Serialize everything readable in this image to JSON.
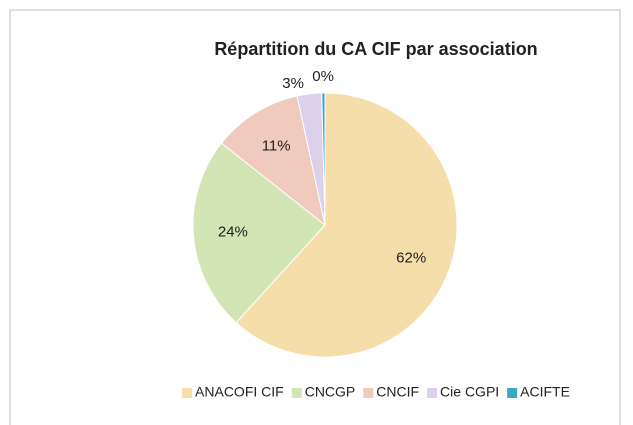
{
  "chart_data": {
    "type": "pie",
    "title": "Répartition du CA CIF par association",
    "categories": [
      "ANACOFI CIF",
      "CNCGP",
      "CNCIF",
      "Cie CGPI",
      "ACIFTE"
    ],
    "values": [
      62,
      24,
      11,
      3,
      0.4
    ],
    "value_labels": [
      "62%",
      "24%",
      "11%",
      "3%",
      "0%"
    ],
    "colors": [
      "#f5dea9",
      "#d4e5b5",
      "#f0cbbd",
      "#ddd0ea",
      "#3ba9c2"
    ],
    "legend": "bottom"
  }
}
